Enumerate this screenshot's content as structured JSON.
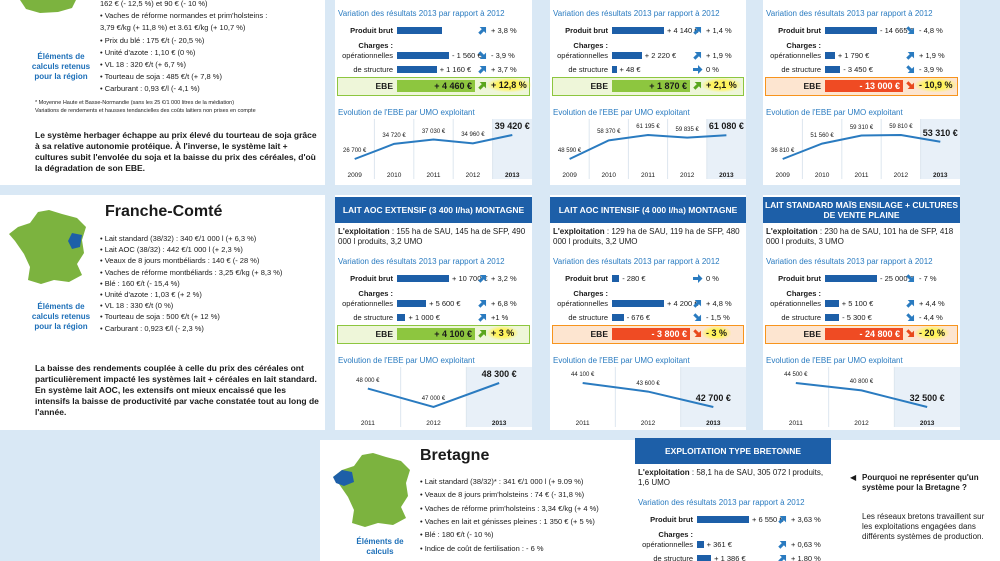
{
  "labels": {
    "variation": "Variation des résultats 2013 par rapport à 2012",
    "produit_brut": "Produit brut",
    "charges": "Charges :",
    "operationnelles": "opérationnelles",
    "structure": "de structure",
    "ebe": "EBE",
    "evolution": "Evolution de l'EBE par UMO exploitant",
    "exploitation": "L'exploitation"
  },
  "top": {
    "items": [
      "162 € (- 12,5 %) et 90 € (- 10 %)",
      "Vaches de réforme normandes et prim'holsteins :",
      "3,79 €/kg (+ 11,8 %) et 3.61 €/kg (+ 10,7 %)",
      "Prix du blé : 175 €/t (- 20,5 %)",
      "Unité d'azote : 1,10 € (0 %)",
      "VL 18 : 320 €/t (+ 6,7 %)",
      "Tourteau de soja : 485 €/t (+ 7,8 %)",
      "Carburant : 0,93 €/l (- 4,1 %)"
    ],
    "side_label": "Éléments de calculs retenus pour la région",
    "footnotes": [
      "* Moyenne Haute et Basse-Normandie (sans les 25 €/1 000 litres de la médiation)",
      "Variations de rendements et hausses tendancielles des coûts laitiers non prises en compte"
    ],
    "text": "Le système herbager échappe au prix élevé du tourteau de soja grâce à sa relative autonomie protéique. À l'inverse, le système lait + cultures subit l'envolée du soja et la baisse du prix des céréales, d'où la dégradation de son EBE.",
    "cards": [
      {
        "produit_brut": {
          "pct": "+ 3,8 %"
        },
        "operationnelles": {
          "value": "- 1 560 €",
          "pct": "- 3,9 %"
        },
        "structure": {
          "value": "+ 1 160 €",
          "pct": "+ 3,7 %"
        },
        "ebe": {
          "value": "+ 4 460 €",
          "pct": "+ 12,8 %"
        },
        "evolution": {
          "points": [
            "26 700 €",
            "34 720 €",
            "37 030 €",
            "34 960 €",
            "39 420 €"
          ],
          "years": [
            "2009",
            "2010",
            "2011",
            "2012",
            "2013"
          ]
        }
      },
      {
        "produit_brut": {
          "value": "+ 4 140 €",
          "pct": "+ 1,4 %"
        },
        "operationnelles": {
          "value": "+ 2 220 €",
          "pct": "+ 1,9 %"
        },
        "structure": {
          "value": "+ 48 €",
          "pct": "0 %"
        },
        "ebe": {
          "value": "+ 1 870 €",
          "pct": "+ 2,1 %"
        },
        "evolution": {
          "points": [
            "48 590 €",
            "58 370 €",
            "61 195 €",
            "59 835 €",
            "61 080 €"
          ],
          "years": [
            "2009",
            "2010",
            "2011",
            "2012",
            "2013"
          ]
        }
      },
      {
        "produit_brut": {
          "value": "- 14 665 €",
          "pct": "- 4,8 %"
        },
        "operationnelles": {
          "value": "+ 1 790 €",
          "pct": "+ 1,9 %"
        },
        "structure": {
          "value": "- 3 450 €",
          "pct": "- 3,9 %"
        },
        "ebe": {
          "value": "- 13 000 €",
          "pct": "- 10,9 %"
        },
        "evolution": {
          "points": [
            "36 810 €",
            "51 560 €",
            "59 310 €",
            "59 810 €",
            "53 310 €"
          ],
          "years": [
            "2009",
            "2010",
            "2011",
            "2012",
            "2013"
          ]
        }
      }
    ]
  },
  "franche_comte": {
    "title": "Franche-Comté",
    "items": [
      "Lait standard (38/32) : 340 €/1 000 l (+ 6,3 %)",
      "Lait AOC (38/32) : 442 €/1 000 l (+ 2,3 %)",
      "Veaux de 8 jours montbéliards : 140 € (- 28 %)",
      "Vaches de réforme montbéliards : 3,25 €/kg (+ 8,3 %)",
      "Blé : 160 €/t (- 15,4 %)",
      "Unité d'azote : 1,03 € (+ 2 %)",
      "VL 18 : 330 €/t (0 %)",
      "Tourteau de soja : 500 €/t (+ 12 %)",
      "Carburant : 0,923 €/l (- 2,3 %)"
    ],
    "side_label": "Éléments de calculs retenus pour la région",
    "text": "La baisse des rendements couplée à celle du prix des céréales ont particulièrement impacté les systèmes lait + céréales en lait standard. En système lait AOC, les extensifs ont mieux encaissé que les intensifs la baisse de productivité par vache constatée tout au long de l'année.",
    "cards": [
      {
        "header": "LAIT AOC EXTENSIF (3 400 l/ha) MONTAGNE",
        "exploitation": " : 155 ha de SAU, 145 ha de SFP, 490 000 l produits, 3,2 UMO",
        "produit_brut": {
          "value": "+ 10 700 €",
          "pct": "+ 3,2 %"
        },
        "operationnelles": {
          "value": "+ 5 600 €",
          "pct": "+ 6,8 %"
        },
        "structure": {
          "value": "+ 1 000 €",
          "pct": "+1 %"
        },
        "ebe": {
          "value": "+ 4 100 €",
          "pct": "+ 3 %"
        },
        "evolution": {
          "points": [
            "48 000 €",
            "47 000 €",
            "48 300 €"
          ],
          "years": [
            "2011",
            "2012",
            "2013"
          ]
        }
      },
      {
        "header": "LAIT AOC INTENSIF (4 000 l/ha) MONTAGNE",
        "exploitation": " : 129 ha de SAU, 119 ha de SFP, 480 000 l produits, 3,2 UMO",
        "produit_brut": {
          "value": "- 280 €",
          "pct": "0 %"
        },
        "operationnelles": {
          "value": "+ 4 200 €",
          "pct": "+ 4,8 %"
        },
        "structure": {
          "value": "- 676 €",
          "pct": "- 1,5 %"
        },
        "ebe": {
          "value": "- 3 800 €",
          "pct": "- 3 %"
        },
        "evolution": {
          "points": [
            "44 100 €",
            "43 600 €",
            "42 700 €"
          ],
          "years": [
            "2011",
            "2012",
            "2013"
          ]
        }
      },
      {
        "header": "LAIT STANDARD MAÏS ENSILAGE + CULTURES DE VENTE PLAINE",
        "exploitation": " : 230 ha de SAU, 101 ha de SFP, 418 000 l produits, 3 UMO",
        "produit_brut": {
          "value": "- 25 000 €",
          "pct": "- 7 %"
        },
        "operationnelles": {
          "value": "+ 5 100 €",
          "pct": "+ 4,4 %"
        },
        "structure": {
          "value": "- 5 300 €",
          "pct": "- 4,4 %"
        },
        "ebe": {
          "value": "- 24 800 €",
          "pct": "- 20 %"
        },
        "evolution": {
          "points": [
            "44 500 €",
            "40 800 €",
            "32 500 €"
          ],
          "years": [
            "2011",
            "2012",
            "2013"
          ]
        }
      }
    ]
  },
  "bretagne": {
    "title": "Bretagne",
    "items": [
      "Lait standard (38/32)* : 341 €/1 000 l (+ 9.09 %)",
      "Veaux de 8 jours prim'holsteins : 74 € (- 31,8 %)",
      "Vaches de réforme prim'holsteins : 3,34 €/kg (+ 4 %)",
      "Vaches en lait et génisses pleines : 1 350 € (+ 5 %)",
      "Blé : 180 €/t (- 10 %)",
      "Indice de coût de fertilisation : - 6 %"
    ],
    "side_label": "Éléments de calculs",
    "card": {
      "header": "EXPLOITATION TYPE BRETONNE",
      "exploitation": " : 58,1 ha de SAU, 305 072 l produits, 1,6 UMO",
      "produit_brut": {
        "value": "+ 6 550 €",
        "pct": "+ 3,63 %"
      },
      "operationnelles": {
        "value": "+ 361 €",
        "pct": "+ 0,63 %"
      },
      "structure": {
        "value": "+ 1 386 €",
        "pct": "+ 1,80 %"
      }
    },
    "note": {
      "title": "Pourquoi ne représenter qu'un système pour la Bretagne ?",
      "text": "Les réseaux bretons travaillent sur les exploitations engagées dans différents systèmes de production."
    }
  }
}
